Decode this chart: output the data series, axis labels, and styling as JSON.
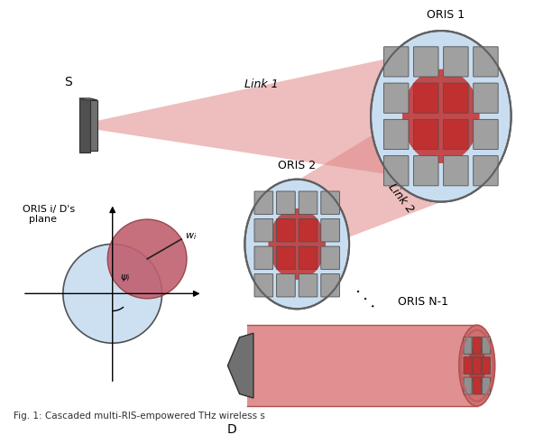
{
  "bg_color": "#ffffff",
  "link1_label": "Link 1",
  "link2_label": "Link 2",
  "s_label": "S",
  "d_label": "D",
  "oris1_label": "ORIS 1",
  "oris2_label": "ORIS 2",
  "orisN1_label": "ORIS N-1",
  "oris_plane_label": "ORIS i/ D's\n  plane",
  "beam_color": "#e08888",
  "beam_color_alpha": 0.6,
  "ris_circle_color": "#c8ddf0",
  "ris_circle_edge": "#606060",
  "cell_color": "#a0a0a0",
  "cell_edge": "#505050",
  "hot_color": "#c03030",
  "pink_fill": "#d07070",
  "pink_light": "#e09090",
  "red_dark": "#aa2020",
  "plane_circle_color": "#c8ddf0",
  "plane_red_color": "#c06070"
}
